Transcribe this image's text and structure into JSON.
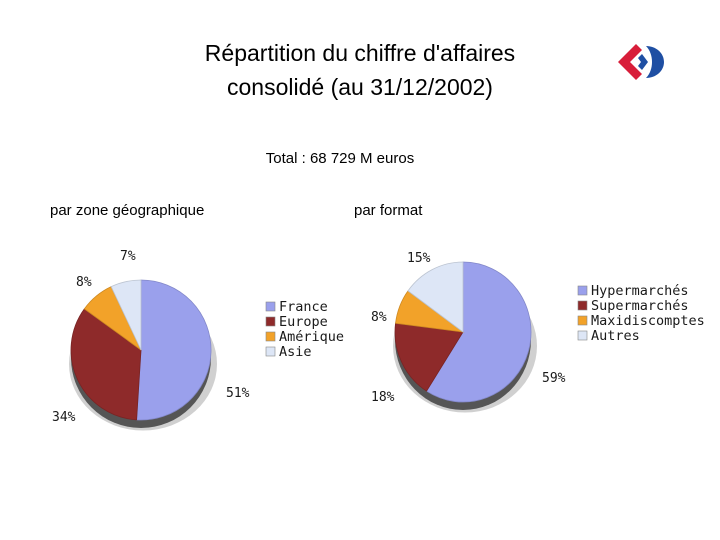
{
  "title": {
    "line1": "Répartition du chiffre d'affaires",
    "line2": "consolidé (au 31/12/2002)"
  },
  "total": "Total : 68 729 M euros",
  "logo": {
    "icon": "carrefour-logo-icon",
    "colors": {
      "red": "#d81e3a",
      "blue": "#1f4fa3"
    }
  },
  "chart_data": [
    {
      "type": "pie",
      "title": "par zone géographique",
      "labels": [
        "France",
        "Europe",
        "Amérique",
        "Asie"
      ],
      "values": [
        51,
        34,
        8,
        7
      ],
      "value_labels": [
        "51%",
        "34%",
        "8%",
        "7%"
      ],
      "colors": [
        "#9aa0ec",
        "#8e2a2a",
        "#f2a229",
        "#dde6f6"
      ],
      "legend": "right"
    },
    {
      "type": "pie",
      "title": "par format",
      "labels": [
        "Hypermarchés",
        "Supermarchés",
        "Maxidiscomptes",
        "Autres"
      ],
      "values": [
        59,
        18,
        8,
        15
      ],
      "value_labels": [
        "59%",
        "18%",
        "8%",
        "15%"
      ],
      "colors": [
        "#9aa0ec",
        "#8e2a2a",
        "#f2a229",
        "#dde6f6"
      ],
      "legend": "right"
    }
  ]
}
